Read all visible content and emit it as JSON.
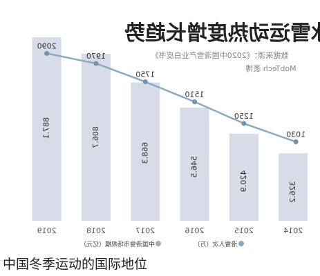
{
  "caption": "中国冬季运动的国际地位",
  "chart_data": {
    "type": "bar",
    "orientation": "mirrored (image is flipped horizontally)",
    "title": "冰雪运动热度增长趋势",
    "source": "数据来源：《2020中国滑雪产业白皮书》",
    "credit": "MobTech 袤博",
    "categories": [
      "2019",
      "2018",
      "2017",
      "2016",
      "2015",
      "2014"
    ],
    "series": [
      {
        "name": "中国滑雪市场规模（亿元）",
        "kind": "bar",
        "values": [
          887.1,
          806.7,
          668.3,
          546.5,
          420.9,
          326.2
        ],
        "value_labels": [
          "887.1",
          "806.7",
          "668.3",
          "546.5",
          "420.9",
          "326.2"
        ],
        "color": "#d8dbe8"
      },
      {
        "name": "滑雪人次（万）",
        "kind": "line",
        "values": [
          2090,
          1970,
          1750,
          1510,
          1250,
          1030
        ],
        "value_labels": [
          "2090",
          "1970",
          "1750",
          "1510",
          "1250",
          "1030"
        ],
        "color": "#8aa9c2"
      }
    ],
    "legend_position": "bottom",
    "grid": false
  }
}
